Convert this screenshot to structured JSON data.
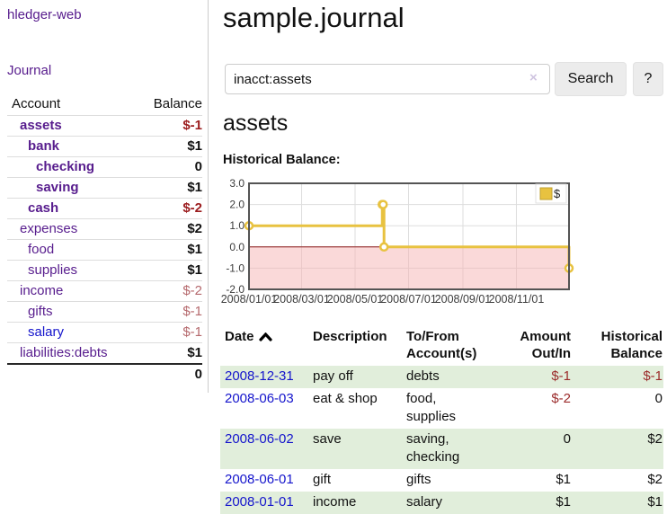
{
  "sidebar": {
    "brand": "hledger-web",
    "journal_label": "Journal",
    "header": {
      "account": "Account",
      "balance": "Balance"
    },
    "rows": [
      {
        "name": "assets",
        "balance": "$-1",
        "indent": 1,
        "bold": true,
        "neg": "strong"
      },
      {
        "name": "bank",
        "balance": "$1",
        "indent": 2,
        "bold": true
      },
      {
        "name": "checking",
        "balance": "0",
        "indent": 3,
        "bold": true
      },
      {
        "name": "saving",
        "balance": "$1",
        "indent": 3,
        "bold": true
      },
      {
        "name": "cash",
        "balance": "$-2",
        "indent": 2,
        "bold": true,
        "neg": "strong"
      },
      {
        "name": "expenses",
        "balance": "$2",
        "indent": 1
      },
      {
        "name": "food",
        "balance": "$1",
        "indent": 2
      },
      {
        "name": "supplies",
        "balance": "$1",
        "indent": 2
      },
      {
        "name": "income",
        "balance": "$-2",
        "indent": 1,
        "neg": "soft"
      },
      {
        "name": "gifts",
        "balance": "$-1",
        "indent": 2,
        "neg": "soft"
      },
      {
        "name": "salary",
        "balance": "$-1",
        "indent": 2,
        "neg": "soft",
        "link_color": "blue"
      },
      {
        "name": "liabilities:debts",
        "balance": "$1",
        "indent": 1
      }
    ],
    "total": "0"
  },
  "main": {
    "title": "sample.journal",
    "search": {
      "value": "inacct:assets",
      "clear_icon": "×",
      "button_label": "Search",
      "help_label": "?"
    },
    "account_heading": "assets",
    "chart_label": "Historical Balance:"
  },
  "chart_data": {
    "type": "line",
    "step": true,
    "title": "Historical Balance:",
    "legend": {
      "label": "$",
      "position": "top-right"
    },
    "series": [
      {
        "name": "$",
        "points": [
          [
            "2008-01-01",
            1
          ],
          [
            "2008-06-01",
            2
          ],
          [
            "2008-06-02",
            2
          ],
          [
            "2008-06-03",
            0
          ],
          [
            "2008-12-31",
            -1
          ]
        ]
      }
    ],
    "x_start": "2008-01-01",
    "x_end": "2008-12-31",
    "x_tick_labels": [
      "2008/01/01",
      "2008/03/01",
      "2008/05/01",
      "2008/07/01",
      "2008/09/01",
      "2008/11/01"
    ],
    "y_tick_labels": [
      "3.0",
      "2.0",
      "1.0",
      "0.0",
      "-1.0",
      "-2.0"
    ],
    "ylim": [
      -2,
      3
    ],
    "grid": true,
    "colors": {
      "line": "#e8c240",
      "marker_fill": "#ffffff",
      "negative_region": "#f6b4b4",
      "zero_line": "#8c1717",
      "border": "#545454",
      "grid": "#dddddd",
      "axis_text": "#3c3c3c"
    }
  },
  "register": {
    "headers": {
      "date": "Date",
      "description": "Description",
      "accounts": "To/From Account(s)",
      "amount": "Amount Out/In",
      "balance": "Historical Balance"
    },
    "rows": [
      {
        "date": "2008-12-31",
        "description": "pay off",
        "accounts": "debts",
        "amount": "$-1",
        "amount_negative": true,
        "balance": "$-1",
        "balance_negative": true
      },
      {
        "date": "2008-06-03",
        "description": "eat & shop",
        "accounts": "food, supplies",
        "amount": "$-2",
        "amount_negative": true,
        "balance": "0",
        "balance_negative": false
      },
      {
        "date": "2008-06-02",
        "description": "save",
        "accounts": "saving, checking",
        "amount": "0",
        "amount_negative": false,
        "balance": "$2",
        "balance_negative": false
      },
      {
        "date": "2008-06-01",
        "description": "gift",
        "accounts": "gifts",
        "amount": "$1",
        "amount_negative": false,
        "balance": "$2",
        "balance_negative": false
      },
      {
        "date": "2008-01-01",
        "description": "income",
        "accounts": "salary",
        "amount": "$1",
        "amount_negative": false,
        "balance": "$1",
        "balance_negative": false
      }
    ]
  },
  "colors": {
    "link_purple": "#571c8d",
    "link_blue": "#1414cc",
    "negative_strong": "#9b1c1e",
    "negative_soft": "#b5696d",
    "row_stripe_green": "#e1eedb"
  }
}
